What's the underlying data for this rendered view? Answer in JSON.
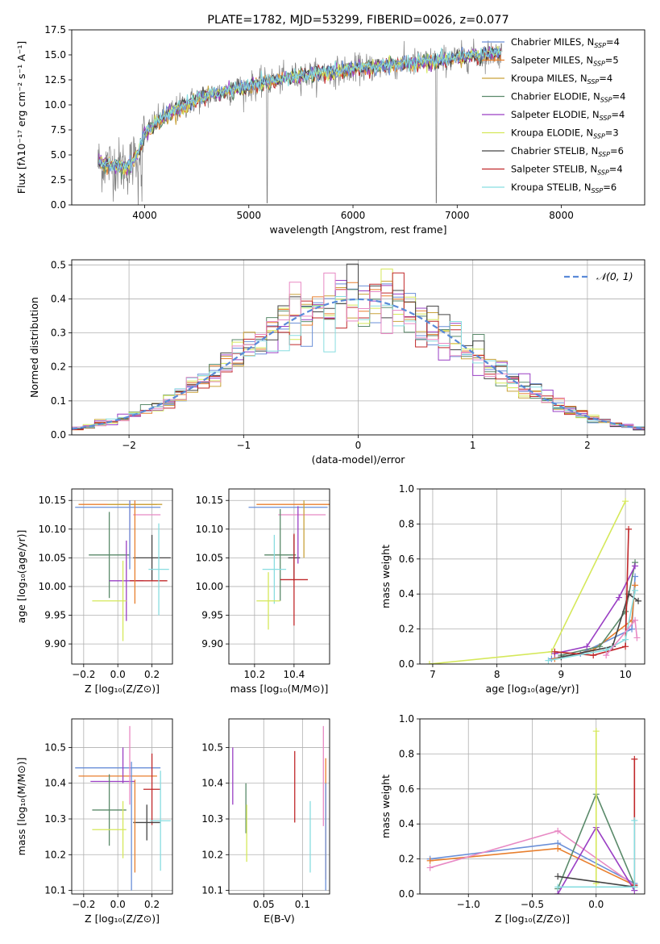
{
  "figure_title": "PLATE=1782, MJD=53299, FIBERID=0026, z=0.077",
  "colors": {
    "Chabrier MILES": "#6a8fd8",
    "Salpeter MILES": "#e87f2e",
    "Kroupa MILES": "#c9a23a",
    "Chabrier ELODIE": "#5a8a6a",
    "Salpeter ELODIE": "#9a3fc4",
    "Kroupa ELODIE": "#d5e85a",
    "Chabrier STELIB": "#444444",
    "Salpeter STELIB": "#c0282a",
    "Kroupa STELIB": "#88dde0",
    "pink": "#e889c4",
    "data": "#7f7f7f",
    "gaussian": "#5a8ad8"
  },
  "chart_data": [
    {
      "id": "spectrum",
      "type": "line",
      "title": "PLATE=1782, MJD=53299, FIBERID=0026, z=0.077",
      "xlabel": "wavelength [Angstrom, rest frame]",
      "ylabel": "Flux [fλ10⁻¹⁷ erg cm⁻² s⁻¹ A⁻¹]",
      "xlim": [
        3300,
        8800
      ],
      "ylim": [
        0,
        17.5
      ],
      "xticks": [
        4000,
        5000,
        6000,
        7000,
        8000
      ],
      "yticks": [
        0.0,
        2.5,
        5.0,
        7.5,
        10.0,
        12.5,
        15.0,
        17.5
      ],
      "grid": false,
      "legend_position": "top-right",
      "legend": [
        {
          "label": "Chabrier MILES, N",
          "sub": "SSP",
          "tail": "=4",
          "color": "#6a8fd8"
        },
        {
          "label": "Salpeter MILES, N",
          "sub": "SSP",
          "tail": "=5",
          "color": "#e87f2e"
        },
        {
          "label": "Kroupa MILES, N",
          "sub": "SSP",
          "tail": "=4",
          "color": "#c9a23a"
        },
        {
          "label": "Chabrier ELODIE, N",
          "sub": "SSP",
          "tail": "=4",
          "color": "#5a8a6a"
        },
        {
          "label": "Salpeter ELODIE, N",
          "sub": "SSP",
          "tail": "=4",
          "color": "#9a3fc4"
        },
        {
          "label": "Kroupa ELODIE, N",
          "sub": "SSP",
          "tail": "=3",
          "color": "#d5e85a"
        },
        {
          "label": "Chabrier STELIB, N",
          "sub": "SSP",
          "tail": "=6",
          "color": "#444444"
        },
        {
          "label": "Salpeter STELIB, N",
          "sub": "SSP",
          "tail": "=4",
          "color": "#c0282a"
        },
        {
          "label": "Kroupa STELIB, N",
          "sub": "SSP",
          "tail": "=6",
          "color": "#88dde0"
        }
      ],
      "continuum": {
        "x": [
          3550,
          3700,
          3850,
          3950,
          4000,
          4100,
          4300,
          4500,
          4800,
          5000,
          5200,
          5500,
          5800,
          6000,
          6300,
          6600,
          6800,
          7000,
          7200,
          7400
        ],
        "y": [
          4.2,
          4.0,
          3.8,
          5.5,
          7.0,
          8.2,
          9.5,
          10.6,
          11.4,
          11.8,
          12.3,
          12.9,
          13.3,
          13.6,
          13.9,
          14.2,
          14.4,
          14.7,
          15.0,
          15.2
        ]
      }
    },
    {
      "id": "residuals",
      "type": "line",
      "xlabel": "(data-model)/error",
      "ylabel": "Normed distribution",
      "xlim": [
        -2.5,
        2.5
      ],
      "ylim": [
        0,
        0.515
      ],
      "xticks": [
        -2,
        -1,
        0,
        1,
        2
      ],
      "yticks": [
        0.0,
        0.1,
        0.2,
        0.3,
        0.4,
        0.5
      ],
      "grid": true,
      "legend_position": "top-right",
      "legend": [
        {
          "label": "𝒩(0, 1)",
          "color": "#5a8ad8",
          "dashed": true
        }
      ]
    },
    {
      "id": "age_vs_Z",
      "type": "scatter",
      "xlabel": "Z [log₁₀(Z/Z⊙)]",
      "ylabel": "age  [log₁₀(age/yr)]",
      "xlim": [
        -0.27,
        0.32
      ],
      "ylim": [
        9.865,
        10.17
      ],
      "xticks": [
        -0.2,
        0.0,
        0.2
      ],
      "yticks": [
        9.9,
        9.95,
        10.0,
        10.05,
        10.1,
        10.15
      ],
      "grid": true,
      "points": [
        {
          "x": 0.0,
          "xerr": 0.25,
          "y": 10.138,
          "yerr": 0.0,
          "color": "#6a8fd8"
        },
        {
          "x": 0.0,
          "xerr": 0.23,
          "y": 10.143,
          "yerr": 0.0,
          "color": "#e87f2e"
        },
        {
          "x": 0.1,
          "xerr": 0.16,
          "y": 10.143,
          "yerr": 0.0,
          "color": "#c9a23a"
        },
        {
          "x": -0.05,
          "xerr": 0.12,
          "y": 10.055,
          "yerr": 0.075,
          "color": "#5a8a6a"
        },
        {
          "x": 0.05,
          "xerr": 0.1,
          "y": 10.01,
          "yerr": 0.07,
          "color": "#9a3fc4"
        },
        {
          "x": -0.05,
          "xerr": 0.1,
          "y": 9.975,
          "yerr": 0.0,
          "color": "#d5e85a"
        },
        {
          "x": 0.03,
          "xerr": 0.0,
          "y": 9.975,
          "yerr": 0.07,
          "color": "#d5e85a"
        },
        {
          "x": 0.2,
          "xerr": 0.11,
          "y": 10.05,
          "yerr": 0.04,
          "color": "#444444"
        },
        {
          "x": 0.18,
          "xerr": 0.11,
          "y": 10.01,
          "yerr": 0.0,
          "color": "#c0282a"
        },
        {
          "x": 0.24,
          "xerr": 0.06,
          "y": 10.03,
          "yerr": 0.08,
          "color": "#88dde0"
        },
        {
          "x": 0.17,
          "xerr": 0.08,
          "y": 10.125,
          "yerr": 0.0,
          "color": "#e889c4"
        },
        {
          "x": 0.07,
          "xerr": 0.0,
          "y": 10.1,
          "yerr": 0.05,
          "color": "#e889c4"
        },
        {
          "x": 0.07,
          "xerr": 0.0,
          "y": 10.09,
          "yerr": 0.06,
          "color": "#6a8fd8"
        },
        {
          "x": 0.1,
          "xerr": 0.0,
          "y": 10.06,
          "yerr": 0.09,
          "color": "#e87f2e"
        }
      ]
    },
    {
      "id": "age_vs_mass",
      "type": "scatter",
      "xlabel": "mass [log₁₀(M/M⊙)]",
      "xlim": [
        10.07,
        10.58
      ],
      "ylim": [
        9.865,
        10.17
      ],
      "xticks": [
        10.2,
        10.4
      ],
      "yticks": [
        9.9,
        9.95,
        10.0,
        10.05,
        10.1,
        10.15
      ],
      "grid": true,
      "points": [
        {
          "x": 10.37,
          "xerr": 0.2,
          "y": 10.138,
          "yerr": 0.0,
          "color": "#6a8fd8"
        },
        {
          "x": 10.4,
          "xerr": 0.19,
          "y": 10.143,
          "yerr": 0.0,
          "color": "#e87f2e"
        },
        {
          "x": 10.44,
          "xerr": 0.12,
          "y": 10.125,
          "yerr": 0.0,
          "color": "#e889c4"
        },
        {
          "x": 10.33,
          "xerr": 0.08,
          "y": 10.055,
          "yerr": 0.08,
          "color": "#5a8a6a"
        },
        {
          "x": 10.4,
          "xerr": 0.03,
          "y": 10.05,
          "yerr": 0.04,
          "color": "#444444"
        },
        {
          "x": 10.4,
          "xerr": 0.07,
          "y": 10.012,
          "yerr": 0.08,
          "color": "#c0282a"
        },
        {
          "x": 10.3,
          "xerr": 0.06,
          "y": 10.03,
          "yerr": 0.06,
          "color": "#88dde0"
        },
        {
          "x": 10.27,
          "xerr": 0.06,
          "y": 9.975,
          "yerr": 0.05,
          "color": "#d5e85a"
        },
        {
          "x": 10.42,
          "xerr": 0.0,
          "y": 10.09,
          "yerr": 0.05,
          "color": "#9a3fc4"
        },
        {
          "x": 10.45,
          "xerr": 0.0,
          "y": 10.1,
          "yerr": 0.05,
          "color": "#c9a23a"
        }
      ]
    },
    {
      "id": "weight_vs_age",
      "type": "line",
      "xlabel": "age  [log₁₀(age/yr)]",
      "ylabel": "mass weight",
      "xlim": [
        6.8,
        10.3
      ],
      "ylim": [
        0,
        1.0
      ],
      "xticks": [
        7,
        8,
        9,
        10
      ],
      "yticks": [
        0.0,
        0.2,
        0.4,
        0.6,
        0.8,
        1.0
      ],
      "grid": true,
      "series": [
        {
          "color": "#d5e85a",
          "x": [
            6.95,
            8.85,
            10.0
          ],
          "y": [
            0.0,
            0.07,
            0.93
          ]
        },
        {
          "color": "#6a8fd8",
          "x": [
            8.85,
            9.3,
            10.1,
            10.15
          ],
          "y": [
            0.03,
            0.06,
            0.2,
            0.5
          ]
        },
        {
          "color": "#e87f2e",
          "x": [
            8.9,
            9.5,
            10.1,
            10.15
          ],
          "y": [
            0.03,
            0.08,
            0.25,
            0.45
          ]
        },
        {
          "color": "#5a8a6a",
          "x": [
            9.0,
            9.6,
            10.0,
            10.15
          ],
          "y": [
            0.05,
            0.1,
            0.3,
            0.58
          ]
        },
        {
          "color": "#9a3fc4",
          "x": [
            8.9,
            9.4,
            9.9,
            10.15
          ],
          "y": [
            0.06,
            0.1,
            0.38,
            0.56
          ]
        },
        {
          "color": "#444444",
          "x": [
            9.0,
            9.8,
            10.05,
            10.2
          ],
          "y": [
            0.04,
            0.1,
            0.4,
            0.36
          ]
        },
        {
          "color": "#c0282a",
          "x": [
            8.9,
            9.5,
            10.0,
            10.05
          ],
          "y": [
            0.07,
            0.05,
            0.1,
            0.77
          ]
        },
        {
          "color": "#88dde0",
          "x": [
            8.8,
            9.7,
            10.0,
            10.15
          ],
          "y": [
            0.02,
            0.08,
            0.14,
            0.42
          ]
        },
        {
          "color": "#e889c4",
          "x": [
            9.7,
            10.15,
            10.18
          ],
          "y": [
            0.05,
            0.25,
            0.15
          ]
        }
      ]
    },
    {
      "id": "mass_vs_Z",
      "type": "scatter",
      "xlabel": "Z [log₁₀(Z/Z⊙)]",
      "ylabel": "mass [log₁₀(M/M⊙)]",
      "xlim": [
        -0.27,
        0.32
      ],
      "ylim": [
        10.09,
        10.58
      ],
      "xticks": [
        -0.2,
        0.0,
        0.2
      ],
      "yticks": [
        10.1,
        10.2,
        10.3,
        10.4,
        10.5
      ],
      "grid": true,
      "points": [
        {
          "x": 0.0,
          "xerr": 0.25,
          "y": 10.443,
          "yerr": 0.0,
          "color": "#6a8fd8"
        },
        {
          "x": 0.0,
          "xerr": 0.23,
          "y": 10.42,
          "yerr": 0.0,
          "color": "#e87f2e"
        },
        {
          "x": -0.03,
          "xerr": 0.13,
          "y": 10.405,
          "yerr": 0.0,
          "color": "#9a3fc4"
        },
        {
          "x": 0.03,
          "xerr": 0.0,
          "y": 10.45,
          "yerr": 0.05,
          "color": "#9a3fc4"
        },
        {
          "x": 0.07,
          "xerr": 0.0,
          "y": 10.45,
          "yerr": 0.11,
          "color": "#e889c4"
        },
        {
          "x": -0.05,
          "xerr": 0.1,
          "y": 10.325,
          "yerr": 0.1,
          "color": "#5a8a6a"
        },
        {
          "x": -0.05,
          "xerr": 0.1,
          "y": 10.27,
          "yerr": 0.0,
          "color": "#d5e85a"
        },
        {
          "x": 0.03,
          "xerr": 0.0,
          "y": 10.27,
          "yerr": 0.08,
          "color": "#d5e85a"
        },
        {
          "x": 0.2,
          "xerr": 0.05,
          "y": 10.383,
          "yerr": 0.1,
          "color": "#c0282a"
        },
        {
          "x": 0.17,
          "xerr": 0.08,
          "y": 10.29,
          "yerr": 0.05,
          "color": "#444444"
        },
        {
          "x": 0.25,
          "xerr": 0.06,
          "y": 10.295,
          "yerr": 0.14,
          "color": "#88dde0"
        },
        {
          "x": 0.08,
          "xerr": 0.0,
          "y": 10.28,
          "yerr": 0.18,
          "color": "#6a8fd8"
        },
        {
          "x": 0.1,
          "xerr": 0.0,
          "y": 10.28,
          "yerr": 0.13,
          "color": "#e87f2e"
        }
      ]
    },
    {
      "id": "mass_vs_EBV",
      "type": "scatter",
      "xlabel": "E(B-V)",
      "xlim": [
        0.005,
        0.135
      ],
      "ylim": [
        10.09,
        10.58
      ],
      "xticks": [
        0.05,
        0.1
      ],
      "yticks": [
        10.1,
        10.2,
        10.3,
        10.4,
        10.5
      ],
      "grid": true,
      "points": [
        {
          "x": 0.01,
          "xerr": 0.0,
          "y": 10.42,
          "yerr": 0.08,
          "color": "#9a3fc4"
        },
        {
          "x": 0.027,
          "xerr": 0.0,
          "y": 10.33,
          "yerr": 0.07,
          "color": "#5a8a6a"
        },
        {
          "x": 0.028,
          "xerr": 0.0,
          "y": 10.26,
          "yerr": 0.08,
          "color": "#d5e85a"
        },
        {
          "x": 0.09,
          "xerr": 0.0,
          "y": 10.39,
          "yerr": 0.1,
          "color": "#c0282a"
        },
        {
          "x": 0.11,
          "xerr": 0.0,
          "y": 10.25,
          "yerr": 0.1,
          "color": "#88dde0"
        },
        {
          "x": 0.127,
          "xerr": 0.0,
          "y": 10.42,
          "yerr": 0.14,
          "color": "#e889c4"
        },
        {
          "x": 0.13,
          "xerr": 0.0,
          "y": 10.3,
          "yerr": 0.17,
          "color": "#e87f2e"
        },
        {
          "x": 0.13,
          "xerr": 0.0,
          "y": 10.25,
          "yerr": 0.15,
          "color": "#6a8fd8"
        }
      ]
    },
    {
      "id": "weight_vs_Z",
      "type": "line",
      "xlabel": "Z [log₁₀(Z/Z⊙)]",
      "ylabel": "mass weight",
      "xlim": [
        -1.38,
        0.38
      ],
      "ylim": [
        0,
        1.0
      ],
      "xticks": [
        -1.0,
        -0.5,
        0.0
      ],
      "yticks": [
        0.0,
        0.2,
        0.4,
        0.6,
        0.8,
        1.0
      ],
      "grid": true,
      "series": [
        {
          "color": "#6a8fd8",
          "x": [
            -1.3,
            -0.3,
            0.3
          ],
          "y": [
            0.2,
            0.29,
            0.06
          ]
        },
        {
          "color": "#e87f2e",
          "x": [
            -1.3,
            -0.3,
            0.3
          ],
          "y": [
            0.19,
            0.26,
            0.05
          ]
        },
        {
          "color": "#e889c4",
          "x": [
            -1.3,
            -0.3,
            0.3
          ],
          "y": [
            0.15,
            0.36,
            0.05
          ]
        },
        {
          "color": "#5a8a6a",
          "x": [
            -0.3,
            0.0,
            0.3
          ],
          "y": [
            0.03,
            0.57,
            0.05
          ]
        },
        {
          "color": "#9a3fc4",
          "x": [
            -0.3,
            0.0,
            0.3
          ],
          "y": [
            0.0,
            0.38,
            0.02
          ]
        },
        {
          "color": "#d5e85a",
          "x": [
            0.0,
            0.0
          ],
          "y": [
            0.06,
            0.93
          ]
        },
        {
          "color": "#444444",
          "x": [
            -0.3,
            0.3
          ],
          "y": [
            0.1,
            0.04
          ]
        },
        {
          "color": "#c0282a",
          "x": [
            0.3,
            0.3
          ],
          "y": [
            0.05,
            0.77
          ]
        },
        {
          "color": "#88dde0",
          "x": [
            -0.3,
            0.3,
            0.3
          ],
          "y": [
            0.04,
            0.04,
            0.42
          ]
        }
      ]
    }
  ]
}
